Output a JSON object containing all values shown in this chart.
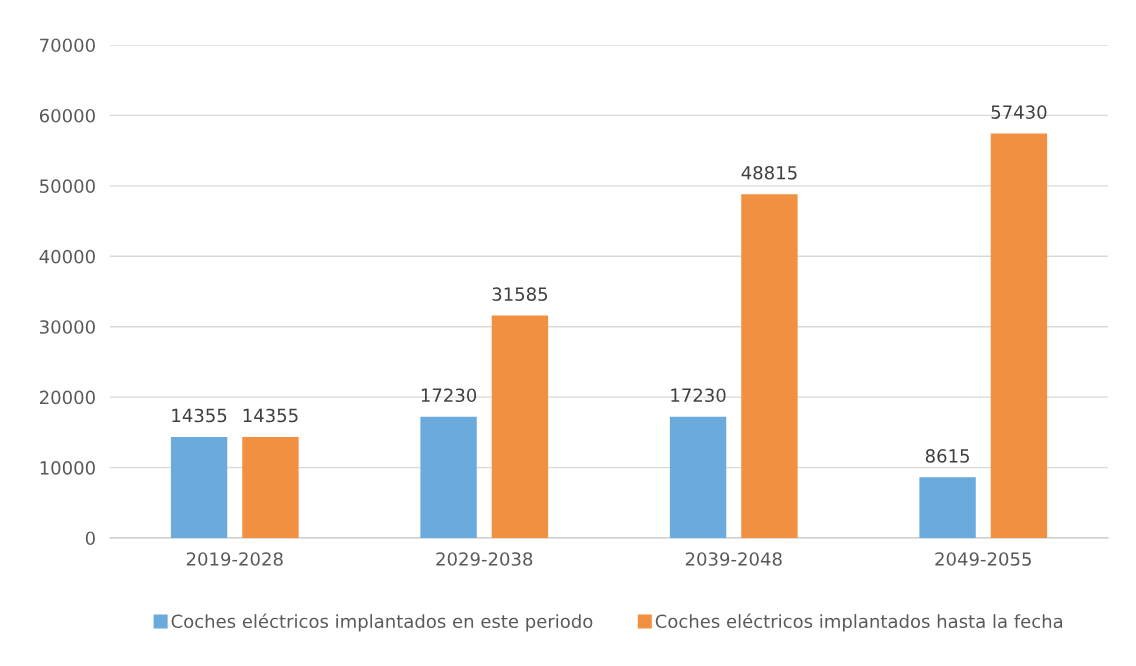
{
  "chart_data": {
    "type": "bar",
    "categories": [
      "2019-2028",
      "2029-2038",
      "2039-2048",
      "2049-2055"
    ],
    "series": [
      {
        "name": "Coches eléctricos implantados en este periodo",
        "color": "#6aaadc",
        "values": [
          14355,
          17230,
          17230,
          8615
        ]
      },
      {
        "name": "Coches eléctricos implantados hasta la fecha",
        "color": "#f19041",
        "values": [
          14355,
          31585,
          48815,
          57430
        ]
      }
    ],
    "ylim": [
      0,
      70000
    ],
    "yticks": [
      0,
      10000,
      20000,
      30000,
      40000,
      50000,
      60000,
      70000
    ],
    "grid": "y",
    "legend": "bottom",
    "data_labels": true
  }
}
